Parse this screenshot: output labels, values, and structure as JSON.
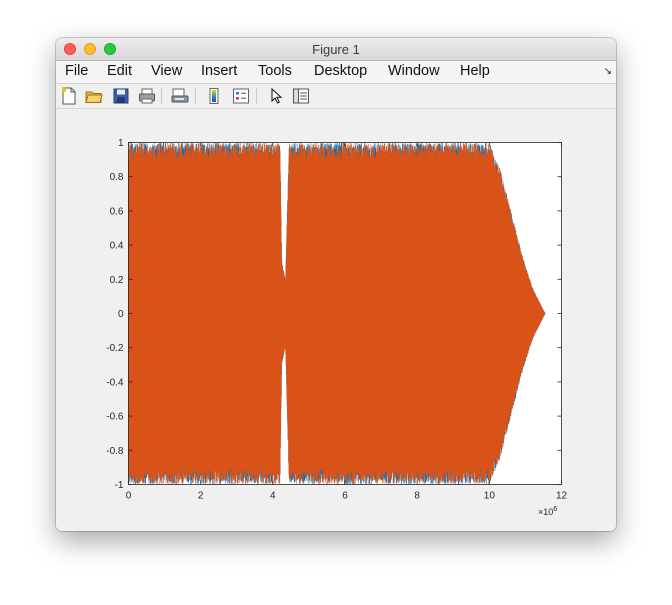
{
  "window": {
    "title": "Figure 1"
  },
  "menubar": {
    "items": [
      "File",
      "Edit",
      "View",
      "Insert",
      "Tools",
      "Desktop",
      "Window",
      "Help"
    ]
  },
  "toolbar": {
    "icons": [
      "new-figure-icon",
      "open-file-icon",
      "save-icon",
      "print-icon",
      "print-preview-icon",
      "insert-colorbar-icon",
      "insert-legend-icon",
      "edit-plot-pointer-icon",
      "property-inspector-icon"
    ]
  },
  "colors": {
    "series_blue": "#0072bd",
    "series_orange": "#d95319"
  },
  "chart_data": {
    "type": "line",
    "xlim": [
      0,
      12
    ],
    "ylim": [
      -1,
      1
    ],
    "x_exponent": "×10^6",
    "xticks": [
      "0",
      "2",
      "4",
      "6",
      "8",
      "10",
      "12"
    ],
    "yticks": [
      "1",
      "0.8",
      "0.6",
      "0.4",
      "0.2",
      "0",
      "-0.2",
      "-0.4",
      "-0.6",
      "-0.8",
      "-1"
    ],
    "grid": false,
    "series": [
      {
        "color": "#0072bd",
        "envelope": {
          "x": [
            0,
            4.2,
            4.25,
            4.35,
            4.45,
            10.0,
            10.3,
            10.6,
            10.9,
            11.2,
            11.5,
            11.55
          ],
          "amplitude": [
            1.0,
            1.0,
            0.3,
            0.2,
            1.0,
            1.0,
            0.85,
            0.6,
            0.35,
            0.15,
            0.02,
            0.0
          ]
        }
      },
      {
        "color": "#d95319",
        "envelope": {
          "x": [
            0,
            4.2,
            4.25,
            4.35,
            4.45,
            10.0,
            10.3,
            10.6,
            10.9,
            11.2,
            11.5,
            11.55
          ],
          "amplitude": [
            1.0,
            1.0,
            0.3,
            0.2,
            1.0,
            1.0,
            0.85,
            0.6,
            0.35,
            0.15,
            0.02,
            0.0
          ]
        }
      }
    ]
  }
}
